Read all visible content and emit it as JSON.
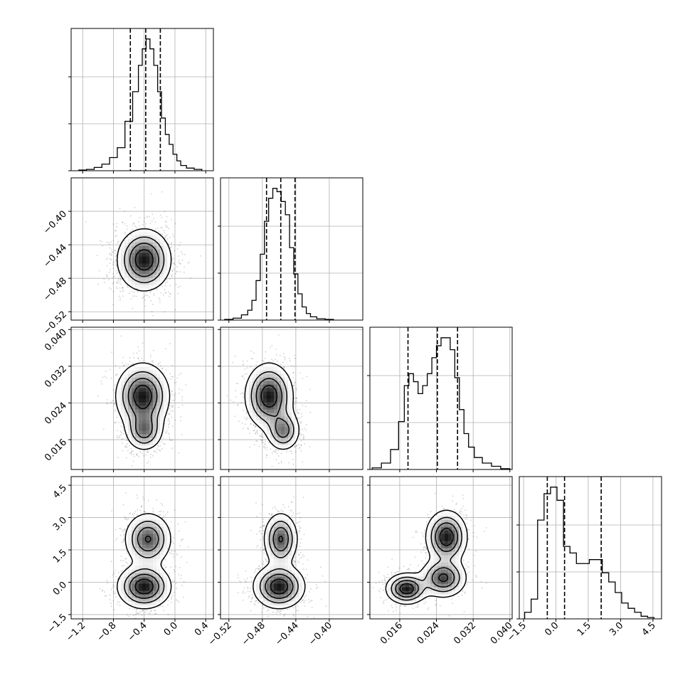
{
  "chart_data": {
    "type": "corner",
    "grid": true,
    "parameters": [
      {
        "index": 0,
        "range": [
          -1.35,
          0.5
        ],
        "ticks": [
          "-1.2",
          "-0.8",
          "-0.4",
          "0.0",
          "0.4"
        ],
        "tick_values": [
          -1.2,
          -0.8,
          -0.4,
          0.0,
          0.4
        ],
        "quantiles": [
          -0.58,
          -0.38,
          -0.19
        ],
        "hist_centers": [
          -1.2,
          -1.1,
          -1.0,
          -0.9,
          -0.8,
          -0.7,
          -0.6,
          -0.5,
          -0.45,
          -0.4,
          -0.35,
          -0.3,
          -0.25,
          -0.2,
          -0.15,
          -0.1,
          -0.05,
          0.0,
          0.05,
          0.1,
          0.2,
          0.3
        ],
        "hist_values": [
          1,
          2,
          5,
          10,
          20,
          35,
          75,
          120,
          160,
          185,
          200,
          185,
          160,
          120,
          80,
          55,
          40,
          25,
          15,
          8,
          4,
          2
        ]
      },
      {
        "index": 1,
        "range": [
          -0.53,
          -0.36
        ],
        "ticks": [
          "-0.52",
          "-0.48",
          "-0.44",
          "-0.40"
        ],
        "tick_values": [
          -0.52,
          -0.48,
          -0.44,
          -0.4
        ],
        "quantiles": [
          -0.475,
          -0.458,
          -0.441
        ],
        "hist_centers": [
          -0.52,
          -0.51,
          -0.5,
          -0.495,
          -0.49,
          -0.485,
          -0.48,
          -0.475,
          -0.47,
          -0.465,
          -0.46,
          -0.455,
          -0.45,
          -0.445,
          -0.44,
          -0.435,
          -0.43,
          -0.425,
          -0.42,
          -0.41,
          -0.4
        ],
        "hist_values": [
          1,
          3,
          8,
          15,
          30,
          60,
          100,
          150,
          185,
          200,
          195,
          180,
          160,
          110,
          70,
          40,
          20,
          10,
          5,
          2,
          1
        ]
      },
      {
        "index": 2,
        "range": [
          0.0095,
          0.0405
        ],
        "ticks": [
          "0.016",
          "0.024",
          "0.032",
          "0.040"
        ],
        "tick_values": [
          0.016,
          0.024,
          0.032,
          0.04
        ],
        "quantiles": [
          0.0178,
          0.0242,
          0.0286
        ],
        "hist_centers": [
          0.011,
          0.013,
          0.015,
          0.0165,
          0.0175,
          0.0185,
          0.0195,
          0.0205,
          0.0215,
          0.0225,
          0.0235,
          0.0245,
          0.0255,
          0.0265,
          0.0275,
          0.0285,
          0.0295,
          0.0305,
          0.0315,
          0.033,
          0.035,
          0.037,
          0.039
        ],
        "hist_values": [
          2,
          8,
          25,
          60,
          105,
          120,
          110,
          95,
          105,
          120,
          140,
          155,
          165,
          165,
          150,
          115,
          75,
          45,
          28,
          15,
          8,
          4,
          1
        ]
      },
      {
        "index": 3,
        "range": [
          -1.7,
          4.9
        ],
        "ticks": [
          "-1.5",
          "0.0",
          "1.5",
          "3.0",
          "4.5"
        ],
        "tick_values": [
          -1.5,
          0.0,
          1.5,
          3.0,
          4.5
        ],
        "quantiles": [
          -0.4,
          0.4,
          2.1
        ],
        "hist_centers": [
          -1.3,
          -1.0,
          -0.7,
          -0.4,
          -0.1,
          0.2,
          0.5,
          0.8,
          1.1,
          1.4,
          1.7,
          2.0,
          2.3,
          2.6,
          2.9,
          3.2,
          3.5,
          3.8,
          4.1,
          4.4
        ],
        "hist_values": [
          5,
          15,
          75,
          95,
          100,
          90,
          55,
          50,
          42,
          42,
          45,
          45,
          35,
          28,
          20,
          12,
          8,
          5,
          2,
          1
        ]
      }
    ],
    "pairs": [
      {
        "x": 0,
        "y": 1,
        "modes": [
          {
            "mx": -0.4,
            "my": -0.458,
            "sx": 0.17,
            "sy": 0.018,
            "w": 1.0
          }
        ]
      },
      {
        "x": 0,
        "y": 2,
        "modes": [
          {
            "mx": -0.42,
            "my": 0.0255,
            "sx": 0.17,
            "sy": 0.0035,
            "w": 0.6
          },
          {
            "mx": -0.4,
            "my": 0.018,
            "sx": 0.12,
            "sy": 0.0022,
            "w": 0.4
          }
        ]
      },
      {
        "x": 1,
        "y": 2,
        "modes": [
          {
            "mx": -0.472,
            "my": 0.0255,
            "sx": 0.014,
            "sy": 0.0035,
            "w": 0.6
          },
          {
            "mx": -0.455,
            "my": 0.018,
            "sx": 0.01,
            "sy": 0.0022,
            "w": 0.4
          }
        ]
      },
      {
        "x": 0,
        "y": 3,
        "modes": [
          {
            "mx": -0.4,
            "my": -0.2,
            "sx": 0.17,
            "sy": 0.5,
            "w": 0.55
          },
          {
            "mx": -0.35,
            "my": 2.0,
            "sx": 0.15,
            "sy": 0.6,
            "w": 0.45
          }
        ]
      },
      {
        "x": 1,
        "y": 3,
        "modes": [
          {
            "mx": -0.46,
            "my": -0.2,
            "sx": 0.015,
            "sy": 0.5,
            "w": 0.55
          },
          {
            "mx": -0.458,
            "my": 2.0,
            "sx": 0.01,
            "sy": 0.6,
            "w": 0.45
          }
        ]
      },
      {
        "x": 2,
        "y": 3,
        "modes": [
          {
            "mx": 0.0175,
            "my": -0.3,
            "sx": 0.0022,
            "sy": 0.35,
            "w": 0.35
          },
          {
            "mx": 0.0255,
            "my": 0.2,
            "sx": 0.0025,
            "sy": 0.45,
            "w": 0.3
          },
          {
            "mx": 0.0262,
            "my": 2.1,
            "sx": 0.0022,
            "sy": 0.6,
            "w": 0.35
          }
        ]
      }
    ]
  }
}
